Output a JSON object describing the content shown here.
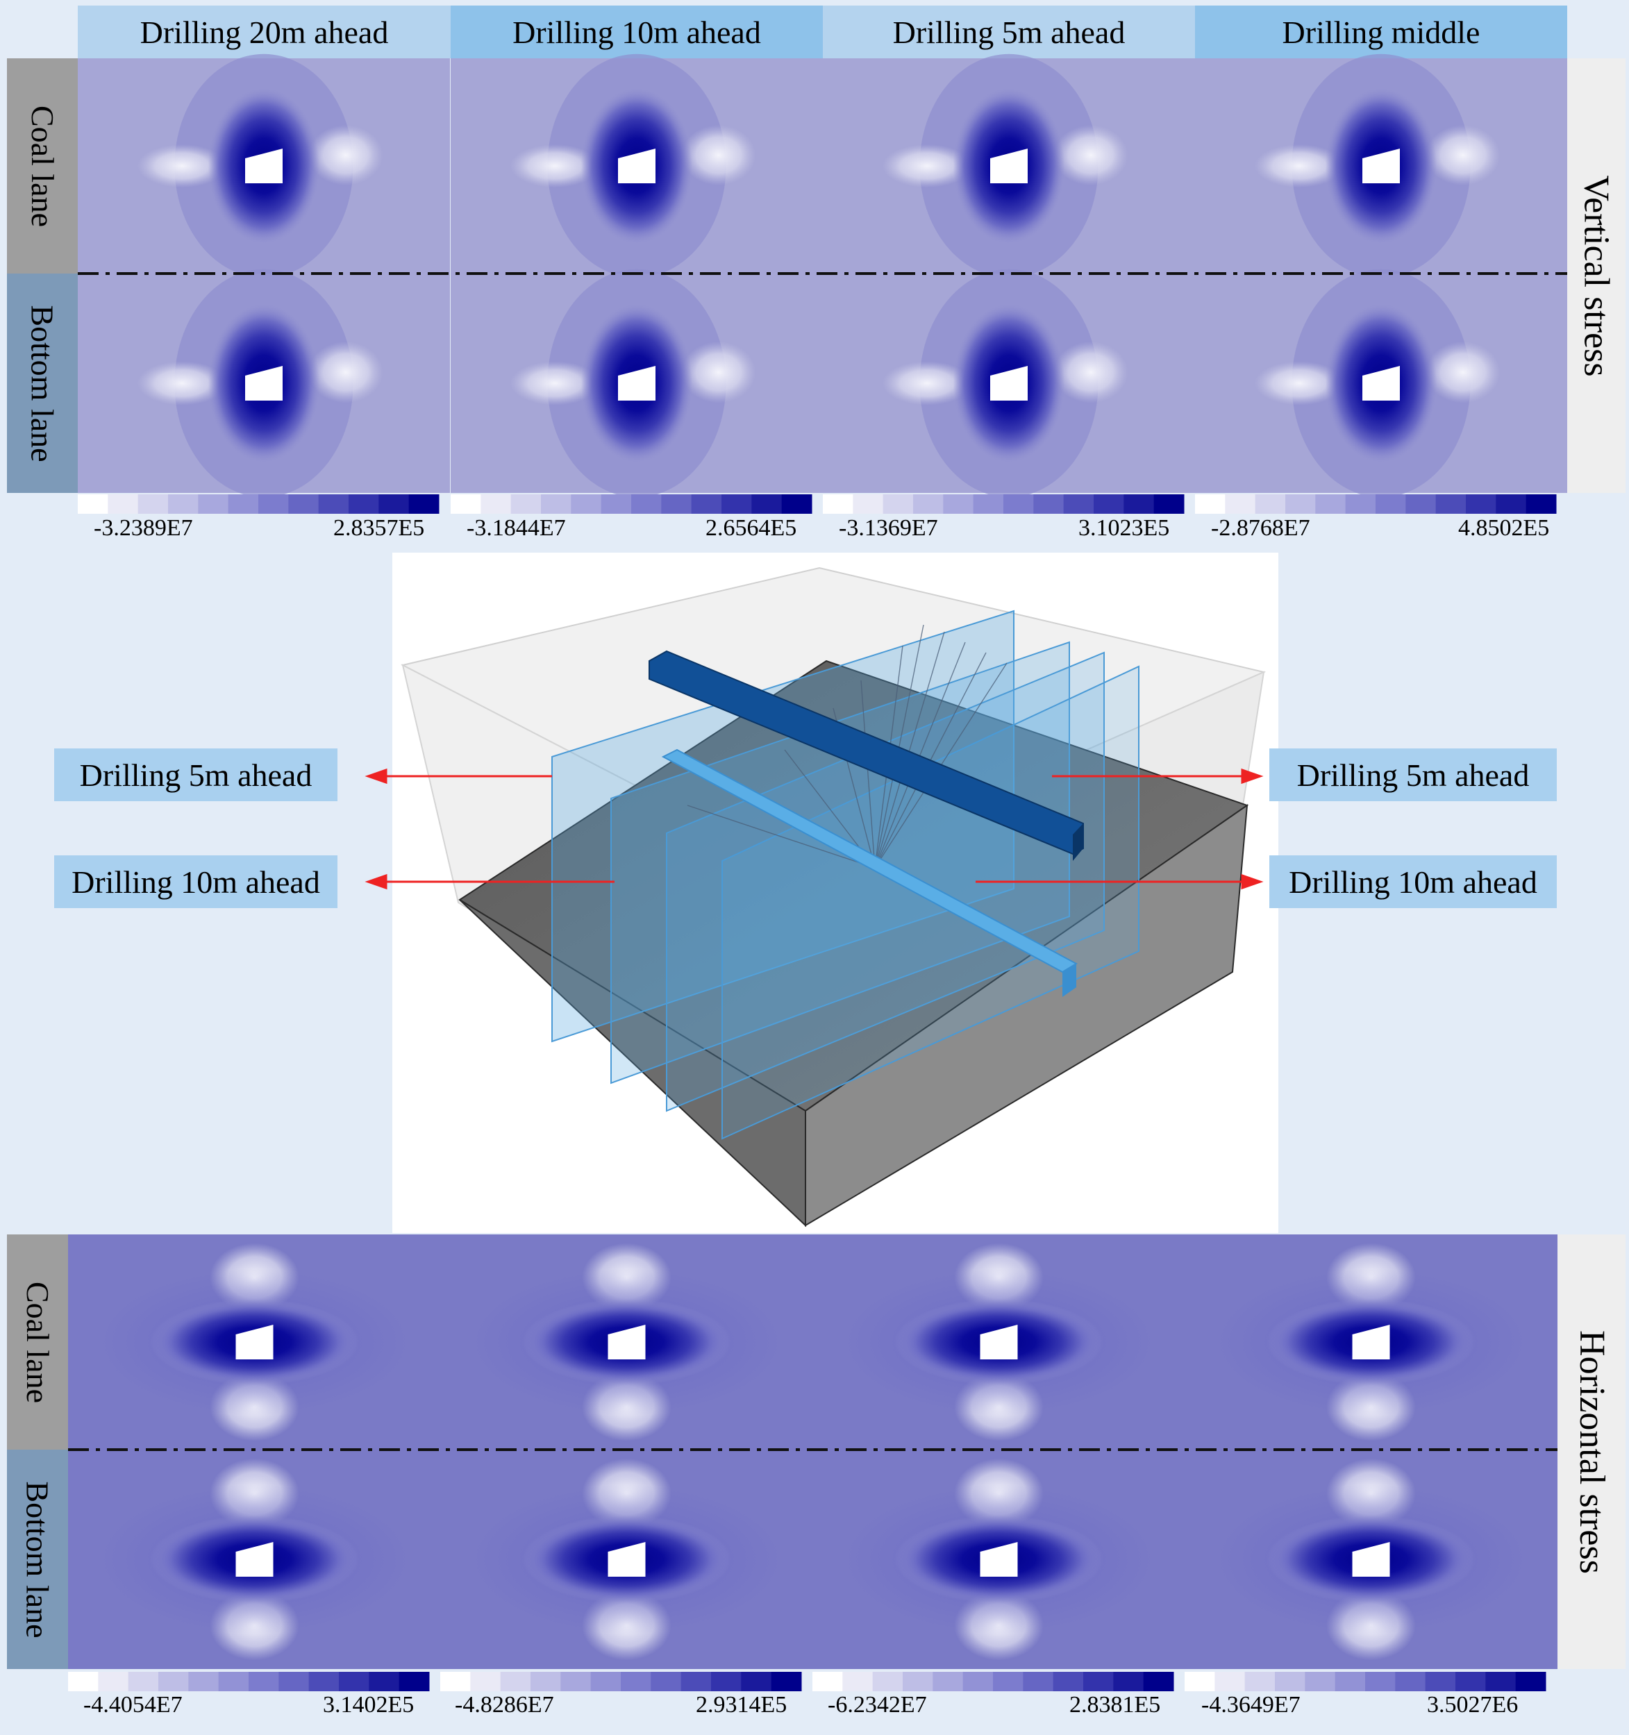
{
  "columns": [
    "Drilling 20m ahead",
    "Drilling 10m ahead",
    "Drilling 5m ahead",
    "Drilling middle"
  ],
  "rows": {
    "coal_lane": "Coal lane",
    "bottom_lane": "Bottom lane"
  },
  "vertical": {
    "label": "Vertical stress",
    "legends": [
      {
        "min": "-3.2389E7",
        "max": "2.8357E5"
      },
      {
        "min": "-3.1844E7",
        "max": "2.6564E5"
      },
      {
        "min": "-3.1369E7",
        "max": "3.1023E5"
      },
      {
        "min": "-2.8768E7",
        "max": "4.8502E5"
      }
    ]
  },
  "horizontal": {
    "label": "Horizontal stress",
    "legends": [
      {
        "min": "-4.4054E7",
        "max": "3.1402E5"
      },
      {
        "min": "-4.8286E7",
        "max": "2.9314E5"
      },
      {
        "min": "-6.2342E7",
        "max": "2.8381E5"
      },
      {
        "min": "-4.3649E7",
        "max": "3.5027E6"
      }
    ]
  },
  "model_callouts": {
    "left_top": "Drilling 5m ahead",
    "left_bottom": "Drilling 10m ahead",
    "right_top": "Drilling 5m ahead",
    "right_bottom": "Drilling 10m ahead"
  },
  "colors": {
    "header_light": "#b4d3ee",
    "header_dark": "#8ec2ea",
    "callout_bg": "#a9d0ef",
    "stress_base": "#8888cc",
    "stress_core": "#00008b",
    "arrow": "#ee2222"
  }
}
